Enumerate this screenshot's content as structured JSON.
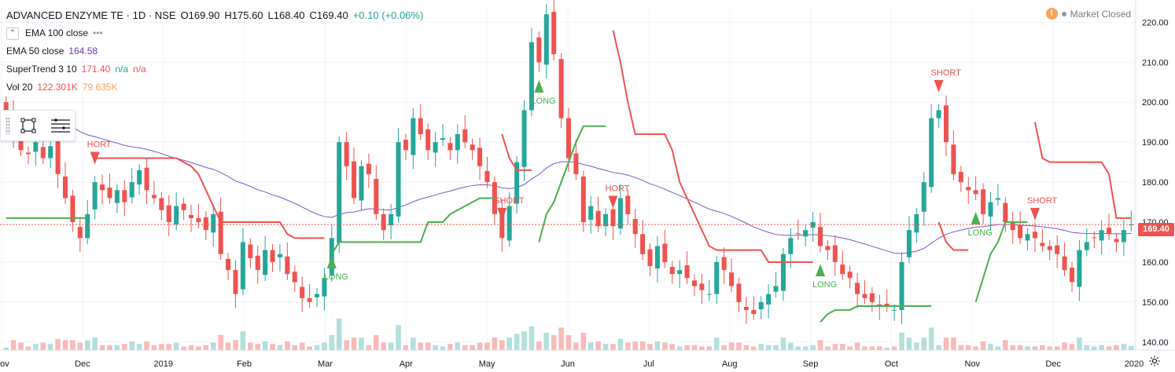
{
  "header": {
    "symbol": "ADVANCED ENZYME TE · 1D · NSE",
    "open": "O169.90",
    "high": "H175.60",
    "low": "L168.40",
    "close": "C169.40",
    "change": "+0.10 (+0.06%)"
  },
  "indicators": [
    {
      "label": "EMA 100 close",
      "values": [
        "•••"
      ],
      "colors": [
        "#9598a1"
      ]
    },
    {
      "label": "EMA 50 close",
      "values": [
        "164.58"
      ],
      "colors": [
        "#673ab7"
      ]
    },
    {
      "label": "SuperTrend 3 10",
      "values": [
        "171.40",
        "n/a",
        "n/a"
      ],
      "colors": [
        "#ef5350",
        "#26a69a",
        "#ef5350"
      ]
    },
    {
      "label": "Vol 20",
      "values": [
        "122.301K",
        "79.635K"
      ],
      "colors": [
        "#ef5350",
        "#f7a35c"
      ]
    }
  ],
  "status": {
    "market": "Market Closed",
    "warning": "!"
  },
  "colors": {
    "up": "#26a69a",
    "down": "#ef5350",
    "st_up": "#4caf50",
    "st_down": "#ef5350",
    "ema50": "#7e57c2",
    "grid": "#f0f3fa"
  },
  "chart_data": {
    "type": "candlestick",
    "price_axis": {
      "ticks": [
        140,
        150,
        160,
        170,
        180,
        190,
        200,
        210,
        220
      ],
      "labels": [
        "140.00",
        "150.00",
        "160.00",
        "170.00",
        "180.00",
        "190.00",
        "200.00",
        "210.00",
        "220.00"
      ]
    },
    "time_axis": {
      "labels": [
        "Nov",
        "Dec",
        "2019",
        "Feb",
        "Mar",
        "Apr",
        "May",
        "Jun",
        "Jul",
        "Aug",
        "Sep",
        "Oct",
        "Nov",
        "Dec",
        "2020"
      ]
    },
    "last_price": "169.40",
    "closes": [
      198,
      192,
      188,
      187,
      190,
      186,
      189,
      182,
      176,
      170,
      166,
      172,
      180,
      178,
      176,
      178,
      175,
      180,
      183,
      178,
      176,
      173,
      170,
      174,
      173,
      171,
      170,
      168,
      172,
      162,
      158,
      152,
      165,
      161,
      158,
      163,
      160,
      162,
      157,
      155,
      151,
      150,
      152,
      156,
      166,
      190,
      184,
      176,
      184,
      182,
      172,
      168,
      172,
      190,
      188,
      196,
      192,
      188,
      190,
      191,
      188,
      192,
      190,
      188,
      184,
      180,
      172,
      166,
      174,
      185,
      198,
      215,
      210,
      222,
      212,
      196,
      186,
      182,
      170,
      174,
      169,
      172,
      169,
      176,
      172,
      167,
      162,
      159,
      164,
      160,
      157,
      158,
      156,
      154,
      153,
      152,
      160,
      158,
      154,
      150,
      148,
      147,
      150,
      152,
      154,
      162,
      166,
      167,
      168,
      170,
      164,
      163,
      160,
      157,
      156,
      152,
      151,
      150,
      149,
      149,
      148,
      160,
      168,
      172,
      180,
      196,
      198,
      190,
      182,
      180,
      178,
      177,
      172,
      175,
      176,
      170,
      168,
      166,
      167,
      166,
      164,
      163,
      162,
      158,
      155,
      163,
      165,
      166,
      168,
      167,
      165,
      168,
      169.4
    ],
    "supertrend": {
      "segments": [
        {
          "trend": "up",
          "values": [
            171,
            171,
            171,
            171,
            171,
            171,
            171,
            171,
            171,
            171,
            171,
            171
          ]
        },
        {
          "trend": "down",
          "values": [
            186,
            186,
            186,
            186,
            186,
            186,
            186,
            186,
            186,
            186,
            186,
            186,
            185,
            184,
            182,
            178,
            174,
            170,
            170,
            170,
            170,
            170,
            170,
            170,
            170,
            170,
            167,
            166,
            166,
            166,
            166,
            166
          ]
        },
        {
          "trend": "up",
          "values": [
            162,
            165,
            165,
            165,
            165,
            165,
            165,
            165,
            165,
            165,
            165,
            165,
            165,
            170,
            170,
            170,
            172,
            173,
            174,
            175,
            176,
            176,
            176
          ]
        },
        {
          "trend": "down",
          "values": [
            192,
            186,
            183,
            183,
            183
          ]
        },
        {
          "trend": "up",
          "values": [
            165,
            172,
            175,
            180,
            185,
            190,
            194,
            194,
            194,
            194
          ]
        },
        {
          "trend": "down",
          "values": [
            218,
            210,
            200,
            192,
            192,
            192,
            192,
            192,
            188,
            180,
            176,
            172,
            168,
            164,
            163,
            163,
            163,
            163,
            163,
            163,
            163,
            160,
            160,
            160,
            160,
            160,
            160,
            160
          ]
        },
        {
          "trend": "up",
          "values": [
            145,
            147,
            148,
            148,
            148,
            149,
            149,
            149,
            149,
            149,
            149,
            149,
            149,
            149,
            149,
            149
          ]
        },
        {
          "trend": "down",
          "values": [
            170,
            165,
            163,
            163,
            163
          ]
        },
        {
          "trend": "up",
          "values": [
            150,
            156,
            162,
            165,
            170,
            170,
            170,
            170
          ]
        },
        {
          "trend": "down",
          "values": [
            195,
            186,
            185,
            185,
            185,
            185,
            185,
            185,
            185,
            185,
            182,
            171,
            171,
            171,
            171,
            171,
            171,
            171,
            171,
            171,
            171
          ]
        }
      ]
    },
    "signals": [
      {
        "text": "HORT",
        "type": "short"
      },
      {
        "text": "LONG",
        "type": "long"
      },
      {
        "text": "SHORT",
        "type": "short"
      },
      {
        "text": "LONG",
        "type": "long"
      },
      {
        "text": "HORT",
        "type": "short"
      },
      {
        "text": "LONG",
        "type": "long"
      },
      {
        "text": "SHORT",
        "type": "short"
      },
      {
        "text": "LONG",
        "type": "long"
      },
      {
        "text": "SHORT",
        "type": "short"
      }
    ]
  }
}
